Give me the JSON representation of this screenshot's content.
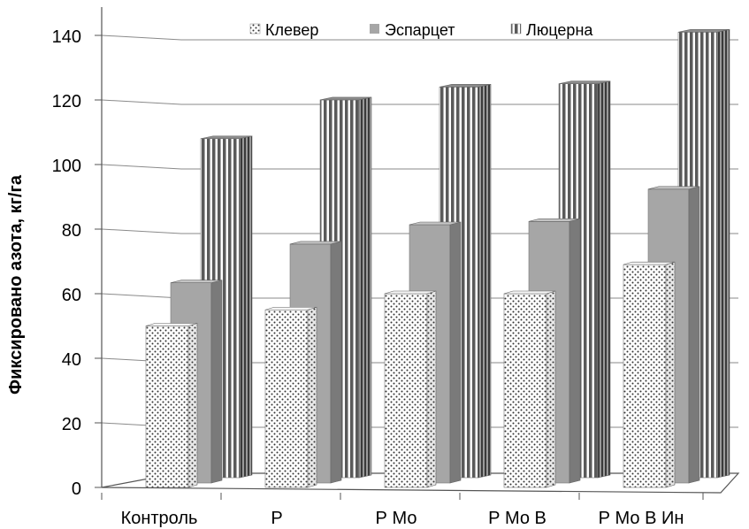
{
  "chart_data": {
    "type": "bar",
    "title": "",
    "ylabel": "Фиксировано азота, кг/га",
    "xlabel": "",
    "categories": [
      "Контроль",
      "Р",
      "Р Мо",
      "Р Мо В",
      "Р Мо В Ин"
    ],
    "series": [
      {
        "name": "Клевер",
        "values": [
          50,
          55,
          60,
          60,
          69
        ],
        "color": "#ffffff",
        "pattern": "dots"
      },
      {
        "name": "Эспарцет",
        "values": [
          62,
          74,
          80,
          81,
          91
        ],
        "color": "#a6a6a6",
        "pattern": "solid"
      },
      {
        "name": "Люцерна",
        "values": [
          105,
          117,
          121,
          122,
          138
        ],
        "color": "#6e6e6e",
        "pattern": "vertical-stripes"
      }
    ],
    "ylim": [
      0,
      140
    ],
    "yticks": [
      0,
      20,
      40,
      60,
      80,
      100,
      120,
      140
    ],
    "grid": true,
    "legend": "top",
    "style": "3d"
  }
}
